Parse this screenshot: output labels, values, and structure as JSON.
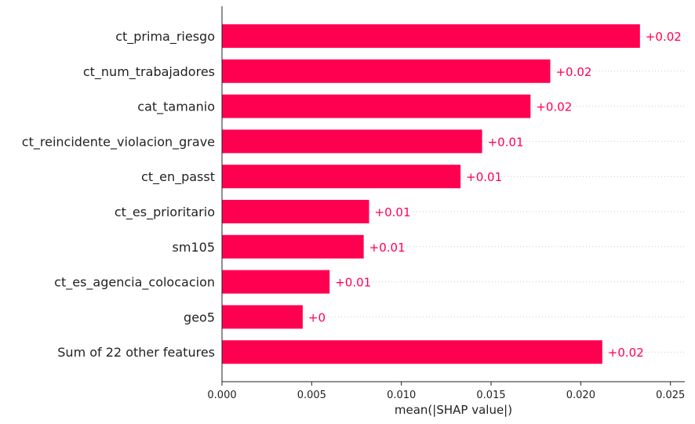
{
  "chart_data": {
    "type": "bar",
    "orientation": "horizontal",
    "categories": [
      "ct_prima_riesgo",
      "ct_num_trabajadores",
      "cat_tamanio",
      "ct_reincidente_violacion_grave",
      "ct_en_passt",
      "ct_es_prioritario",
      "sm105",
      "ct_es_agencia_colocacion",
      "geo5",
      "Sum of 22 other features"
    ],
    "values": [
      0.0233,
      0.0183,
      0.0172,
      0.0145,
      0.0133,
      0.0082,
      0.0079,
      0.006,
      0.0045,
      0.0212
    ],
    "data_labels": [
      "+0.02",
      "+0.02",
      "+0.02",
      "+0.01",
      "+0.01",
      "+0.01",
      "+0.01",
      "+0.01",
      "+0",
      "+0.02"
    ],
    "xlabel": "mean(|SHAP value|)",
    "xlim": [
      0,
      0.0258
    ],
    "xticks": [
      0.0,
      0.005,
      0.01,
      0.015,
      0.02,
      0.025
    ],
    "xtick_labels": [
      "0.000",
      "0.005",
      "0.010",
      "0.015",
      "0.020",
      "0.025"
    ],
    "grid": "dotted row guides",
    "colors": {
      "bar": "#ff0051",
      "label": "#ff0051",
      "axis": "#222222",
      "guide": "#cccccc"
    }
  }
}
